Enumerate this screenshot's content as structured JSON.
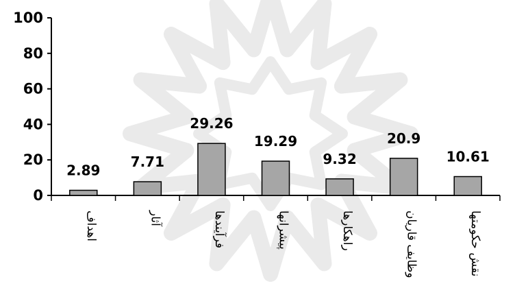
{
  "chart_data": {
    "type": "bar",
    "categories": [
      "اهداف",
      "آثار",
      "فرآیندها",
      "پیشرانها",
      "راهکارها",
      "وظایف قاریان",
      "نقش حکومتها"
    ],
    "values": [
      2.89,
      7.71,
      29.26,
      19.29,
      9.32,
      20.9,
      10.61
    ],
    "data_labels": [
      "2.89",
      "7.71",
      "29.26",
      "19.29",
      "9.32",
      "20.9",
      "10.61"
    ],
    "title": "",
    "xlabel": "",
    "ylabel": "",
    "ylim": [
      0,
      100
    ],
    "yticks": [
      "0",
      "20",
      "40",
      "60",
      "80",
      "100"
    ],
    "grid": false,
    "legend": "none",
    "colors": {
      "bar": "#a6a6a6",
      "bar_border": "#000000",
      "axis": "#000000",
      "watermark": "#d9d9d9"
    }
  },
  "watermark": {
    "icon": "star-rosette-watermark"
  }
}
